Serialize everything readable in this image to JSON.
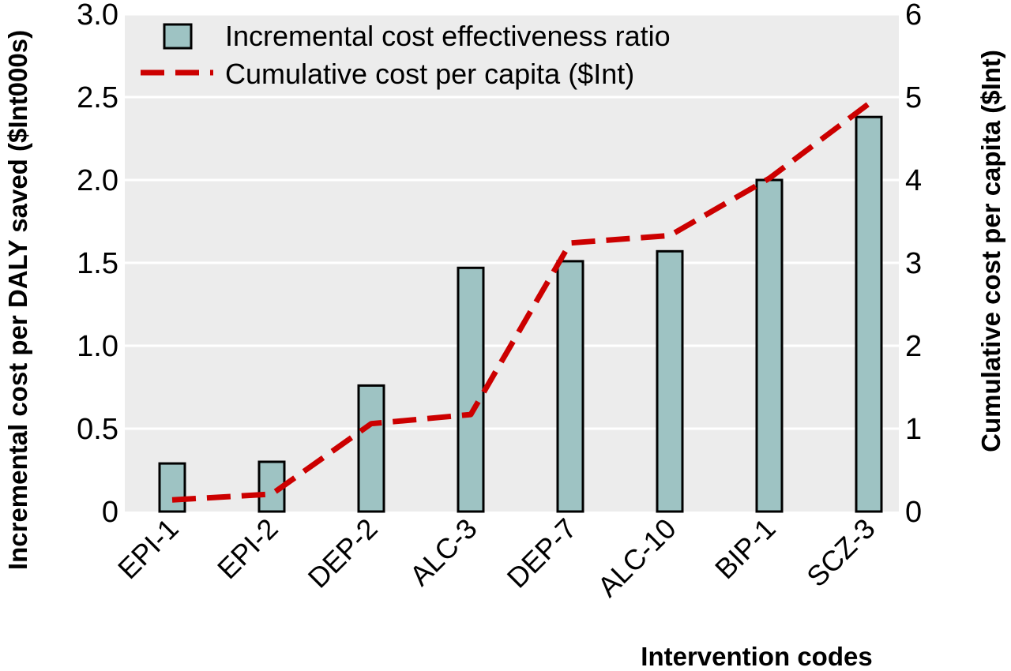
{
  "chart_data": {
    "type": "bar",
    "categories": [
      "EPI-1",
      "EPI-2",
      "DEP-2",
      "ALC-3",
      "DEP-7",
      "ALC-10",
      "BIP-1",
      "SCZ-3"
    ],
    "series": [
      {
        "name": "Incremental cost effectiveness ratio",
        "type": "bar",
        "axis": "left",
        "values": [
          0.29,
          0.3,
          0.76,
          1.47,
          1.51,
          1.57,
          2.0,
          2.38
        ]
      },
      {
        "name": "Cumulative cost per capita ($Int)",
        "type": "line",
        "axis": "right",
        "values": [
          0.14,
          0.21,
          1.06,
          1.17,
          3.24,
          3.33,
          4.02,
          4.92
        ]
      }
    ],
    "xlabel": "Intervention codes",
    "ylabel": "Incremental cost per DALY saved ($Int000s)",
    "y2label": "Cumulative cost per capita ($Int)",
    "ylim": [
      0,
      3
    ],
    "y2lim": [
      0,
      6
    ],
    "yticks": [
      "0",
      "0.5",
      "1.0",
      "1.5",
      "2.0",
      "2.5",
      "3.0"
    ],
    "y2ticks": [
      "0",
      "1",
      "2",
      "3",
      "4",
      "5",
      "6"
    ],
    "grid": "horizontal",
    "legend_position": "top",
    "colors": {
      "bar_fill": "#9ec3c3",
      "bar_stroke": "#000000",
      "line": "#cc0000",
      "plot_background": "#ececec",
      "grid": "#ffffff"
    }
  }
}
